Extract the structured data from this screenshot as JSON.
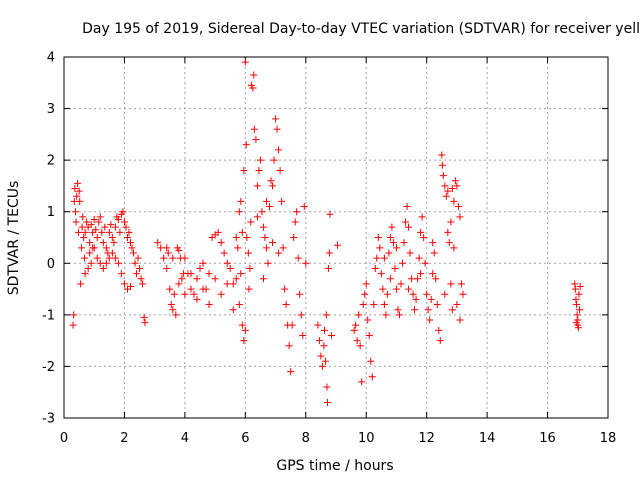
{
  "chart_data": {
    "type": "scatter",
    "title": "Day 195 of 2019, Sidereal Day-to-day VTEC variation (SDTVAR) for receiver yell",
    "xlabel": "GPS time / hours",
    "ylabel": "SDTVAR / TECUs",
    "xlim": [
      0,
      18
    ],
    "ylim": [
      -3,
      4
    ],
    "xticks": [
      0,
      2,
      4,
      6,
      8,
      10,
      12,
      14,
      16,
      18
    ],
    "yticks": [
      -3,
      -2,
      -1,
      0,
      1,
      2,
      3,
      4
    ],
    "grid": true,
    "marker": "+",
    "color": "#ff0000",
    "series": [
      {
        "name": "SDTVAR",
        "points": [
          [
            0.3,
            -1.2
          ],
          [
            0.32,
            -1.0
          ],
          [
            0.34,
            1.2
          ],
          [
            0.36,
            1.45
          ],
          [
            0.38,
            1.0
          ],
          [
            0.4,
            0.8
          ],
          [
            0.42,
            1.3
          ],
          [
            0.45,
            1.55
          ],
          [
            0.48,
            0.6
          ],
          [
            0.5,
            1.4
          ],
          [
            0.52,
            1.2
          ],
          [
            0.55,
            -0.4
          ],
          [
            0.58,
            0.3
          ],
          [
            0.6,
            0.7
          ],
          [
            0.62,
            0.9
          ],
          [
            0.65,
            0.5
          ],
          [
            0.68,
            0.1
          ],
          [
            0.7,
            0.6
          ],
          [
            0.75,
            0.8
          ],
          [
            0.8,
            0.7
          ],
          [
            0.85,
            0.2
          ],
          [
            0.9,
            0.75
          ],
          [
            0.95,
            0.6
          ],
          [
            1.0,
            0.85
          ],
          [
            1.05,
            0.65
          ],
          [
            1.1,
            0.5
          ],
          [
            1.15,
            0.8
          ],
          [
            1.2,
            0.9
          ],
          [
            1.25,
            0.6
          ],
          [
            1.3,
            0.4
          ],
          [
            1.35,
            0.7
          ],
          [
            1.4,
            0.3
          ],
          [
            1.45,
            0.2
          ],
          [
            1.5,
            0.6
          ],
          [
            1.55,
            0.75
          ],
          [
            1.6,
            0.5
          ],
          [
            1.65,
            0.4
          ],
          [
            1.7,
            0.7
          ],
          [
            1.75,
            0.9
          ],
          [
            1.8,
            0.85
          ],
          [
            1.85,
            0.6
          ],
          [
            1.9,
            0.95
          ],
          [
            1.95,
            1.0
          ],
          [
            2.0,
            0.8
          ],
          [
            2.05,
            0.7
          ],
          [
            2.1,
            0.5
          ],
          [
            2.15,
            0.6
          ],
          [
            2.2,
            0.4
          ],
          [
            2.25,
            0.3
          ],
          [
            2.3,
            0.2
          ],
          [
            2.35,
            0.0
          ],
          [
            2.4,
            -0.2
          ],
          [
            2.45,
            0.1
          ],
          [
            2.5,
            -0.1
          ],
          [
            2.55,
            -0.3
          ],
          [
            2.6,
            -0.4
          ],
          [
            2.65,
            -1.05
          ],
          [
            2.68,
            -1.15
          ],
          [
            1.0,
            0.3
          ],
          [
            1.1,
            0.1
          ],
          [
            1.2,
            0.0
          ],
          [
            1.3,
            -0.1
          ],
          [
            1.4,
            0.0
          ],
          [
            1.5,
            0.1
          ],
          [
            1.6,
            0.2
          ],
          [
            1.7,
            0.1
          ],
          [
            1.8,
            0.0
          ],
          [
            1.9,
            -0.2
          ],
          [
            2.0,
            -0.4
          ],
          [
            2.1,
            -0.5
          ],
          [
            2.2,
            -0.45
          ],
          [
            0.7,
            -0.2
          ],
          [
            0.8,
            -0.1
          ],
          [
            0.9,
            0.0
          ],
          [
            0.85,
            0.4
          ],
          [
            0.95,
            0.3
          ],
          [
            3.1,
            0.4
          ],
          [
            3.2,
            0.3
          ],
          [
            3.3,
            0.1
          ],
          [
            3.4,
            -0.1
          ],
          [
            3.45,
            0.2
          ],
          [
            3.5,
            -0.5
          ],
          [
            3.55,
            -0.8
          ],
          [
            3.6,
            -0.9
          ],
          [
            3.65,
            -0.6
          ],
          [
            3.7,
            -1.0
          ],
          [
            3.75,
            0.3
          ],
          [
            3.8,
            0.25
          ],
          [
            3.85,
            0.1
          ],
          [
            3.9,
            -0.3
          ],
          [
            3.95,
            -0.2
          ],
          [
            4.0,
            0.1
          ],
          [
            4.1,
            -0.2
          ],
          [
            4.2,
            -0.5
          ],
          [
            4.3,
            -0.6
          ],
          [
            4.4,
            -0.3
          ],
          [
            4.5,
            -0.1
          ],
          [
            4.6,
            0.0
          ],
          [
            4.7,
            -0.5
          ],
          [
            4.8,
            -0.2
          ],
          [
            4.9,
            0.5
          ],
          [
            5.0,
            0.55
          ],
          [
            5.1,
            0.6
          ],
          [
            5.2,
            0.4
          ],
          [
            5.3,
            0.2
          ],
          [
            5.4,
            0.0
          ],
          [
            5.5,
            -0.1
          ],
          [
            5.6,
            -0.4
          ],
          [
            5.7,
            -0.3
          ],
          [
            5.8,
            -0.8
          ],
          [
            5.9,
            -1.2
          ],
          [
            5.95,
            -1.5
          ],
          [
            6.0,
            -1.3
          ],
          [
            5.85,
            -0.2
          ],
          [
            5.75,
            0.3
          ],
          [
            5.7,
            0.5
          ],
          [
            3.4,
            0.3
          ],
          [
            3.6,
            0.1
          ],
          [
            3.8,
            -0.4
          ],
          [
            4.0,
            -0.6
          ],
          [
            4.2,
            -0.2
          ],
          [
            4.4,
            -0.7
          ],
          [
            4.6,
            -0.5
          ],
          [
            4.8,
            -0.8
          ],
          [
            5.0,
            -0.3
          ],
          [
            5.2,
            -0.6
          ],
          [
            5.4,
            -0.4
          ],
          [
            5.6,
            -0.9
          ],
          [
            5.8,
            1.0
          ],
          [
            5.85,
            1.2
          ],
          [
            5.9,
            0.6
          ],
          [
            5.95,
            1.8
          ],
          [
            6.0,
            3.9
          ],
          [
            6.03,
            2.3
          ],
          [
            6.05,
            0.5
          ],
          [
            6.1,
            0.2
          ],
          [
            6.15,
            -0.1
          ],
          [
            6.2,
            3.45
          ],
          [
            6.25,
            3.4
          ],
          [
            6.28,
            3.65
          ],
          [
            6.3,
            2.6
          ],
          [
            6.35,
            2.4
          ],
          [
            6.4,
            1.5
          ],
          [
            6.45,
            1.8
          ],
          [
            6.5,
            2.0
          ],
          [
            6.55,
            1.0
          ],
          [
            6.6,
            0.7
          ],
          [
            6.65,
            0.5
          ],
          [
            6.7,
            0.3
          ],
          [
            6.75,
            0.0
          ],
          [
            6.8,
            1.1
          ],
          [
            6.85,
            1.6
          ],
          [
            6.9,
            1.5
          ],
          [
            6.95,
            2.0
          ],
          [
            7.0,
            2.8
          ],
          [
            7.05,
            2.6
          ],
          [
            7.1,
            2.2
          ],
          [
            7.15,
            1.8
          ],
          [
            7.2,
            1.2
          ],
          [
            7.25,
            0.3
          ],
          [
            7.3,
            -0.5
          ],
          [
            7.35,
            -0.8
          ],
          [
            7.4,
            -1.2
          ],
          [
            7.45,
            -1.6
          ],
          [
            7.5,
            -2.1
          ],
          [
            7.55,
            -1.2
          ],
          [
            7.6,
            0.5
          ],
          [
            7.65,
            0.8
          ],
          [
            7.7,
            1.0
          ],
          [
            7.75,
            0.1
          ],
          [
            7.8,
            -0.6
          ],
          [
            7.85,
            -1.0
          ],
          [
            7.9,
            -1.4
          ],
          [
            7.95,
            1.1
          ],
          [
            8.0,
            0.0
          ],
          [
            6.12,
            -0.5
          ],
          [
            6.18,
            0.8
          ],
          [
            6.4,
            0.9
          ],
          [
            6.6,
            -0.3
          ],
          [
            6.7,
            1.2
          ],
          [
            6.9,
            0.4
          ],
          [
            7.1,
            0.2
          ],
          [
            8.4,
            -1.2
          ],
          [
            8.45,
            -1.5
          ],
          [
            8.5,
            -1.8
          ],
          [
            8.55,
            -2.0
          ],
          [
            8.6,
            -1.6
          ],
          [
            8.65,
            -1.9
          ],
          [
            8.7,
            -2.4
          ],
          [
            8.72,
            -2.7
          ],
          [
            8.75,
            -0.1
          ],
          [
            8.78,
            0.2
          ],
          [
            8.8,
            0.95
          ],
          [
            8.85,
            -1.4
          ],
          [
            9.05,
            0.35
          ],
          [
            8.68,
            -1.0
          ],
          [
            8.62,
            -1.3
          ],
          [
            9.6,
            -1.3
          ],
          [
            9.65,
            -1.2
          ],
          [
            9.7,
            -1.5
          ],
          [
            9.75,
            -1.0
          ],
          [
            9.8,
            -1.6
          ],
          [
            9.85,
            -2.3
          ],
          [
            9.9,
            -0.8
          ],
          [
            9.95,
            -0.6
          ],
          [
            10.0,
            -0.4
          ],
          [
            10.05,
            -1.1
          ],
          [
            10.1,
            -1.4
          ],
          [
            10.15,
            -1.9
          ],
          [
            10.2,
            -2.2
          ],
          [
            10.25,
            -0.8
          ],
          [
            10.3,
            -0.1
          ],
          [
            10.35,
            0.1
          ],
          [
            10.4,
            0.5
          ],
          [
            10.45,
            0.3
          ],
          [
            10.5,
            -0.2
          ],
          [
            10.55,
            -0.5
          ],
          [
            10.6,
            -0.8
          ],
          [
            10.65,
            -1.0
          ],
          [
            10.7,
            -0.6
          ],
          [
            10.75,
            0.2
          ],
          [
            10.8,
            0.5
          ],
          [
            10.85,
            0.7
          ],
          [
            10.9,
            0.4
          ],
          [
            10.95,
            -0.1
          ],
          [
            11.0,
            -0.5
          ],
          [
            11.05,
            -0.9
          ],
          [
            11.1,
            -1.0
          ],
          [
            11.15,
            -0.4
          ],
          [
            11.2,
            0.0
          ],
          [
            11.25,
            0.4
          ],
          [
            11.3,
            0.8
          ],
          [
            11.35,
            1.1
          ],
          [
            11.4,
            0.7
          ],
          [
            11.45,
            0.2
          ],
          [
            11.5,
            -0.3
          ],
          [
            11.55,
            -0.6
          ],
          [
            11.6,
            -0.9
          ],
          [
            11.65,
            -0.7
          ],
          [
            11.7,
            -0.3
          ],
          [
            11.75,
            0.1
          ],
          [
            11.8,
            0.6
          ],
          [
            11.85,
            0.9
          ],
          [
            11.9,
            0.5
          ],
          [
            11.95,
            0.0
          ],
          [
            12.0,
            -0.6
          ],
          [
            12.05,
            -0.9
          ],
          [
            12.1,
            -1.1
          ],
          [
            12.15,
            -0.7
          ],
          [
            12.2,
            -0.2
          ],
          [
            12.25,
            0.2
          ],
          [
            12.3,
            -0.3
          ],
          [
            12.35,
            -0.8
          ],
          [
            12.4,
            -1.3
          ],
          [
            12.45,
            -1.5
          ],
          [
            12.5,
            2.1
          ],
          [
            12.52,
            1.9
          ],
          [
            12.55,
            1.7
          ],
          [
            12.6,
            1.5
          ],
          [
            12.65,
            1.3
          ],
          [
            12.7,
            0.6
          ],
          [
            12.75,
            0.4
          ],
          [
            12.8,
            -0.4
          ],
          [
            12.85,
            -0.9
          ],
          [
            12.9,
            1.2
          ],
          [
            12.95,
            1.6
          ],
          [
            13.0,
            1.5
          ],
          [
            13.05,
            1.1
          ],
          [
            13.1,
            0.9
          ],
          [
            13.15,
            -0.4
          ],
          [
            13.2,
            -0.6
          ],
          [
            13.1,
            -1.1
          ],
          [
            13.0,
            -0.8
          ],
          [
            12.9,
            0.3
          ],
          [
            12.8,
            0.8
          ],
          [
            11.0,
            0.3
          ],
          [
            10.8,
            -0.3
          ],
          [
            10.6,
            0.1
          ],
          [
            11.4,
            -0.5
          ],
          [
            11.8,
            -0.2
          ],
          [
            12.2,
            0.4
          ],
          [
            12.6,
            -0.6
          ],
          [
            12.7,
            1.4
          ],
          [
            12.85,
            1.45
          ],
          [
            16.9,
            -0.4
          ],
          [
            16.92,
            -0.5
          ],
          [
            16.94,
            -0.7
          ],
          [
            16.96,
            -0.8
          ],
          [
            16.98,
            -1.0
          ],
          [
            17.0,
            -1.1
          ],
          [
            17.02,
            -1.25
          ],
          [
            17.04,
            -0.6
          ],
          [
            17.06,
            -0.9
          ],
          [
            17.08,
            -0.45
          ],
          [
            17.0,
            -1.2
          ],
          [
            16.95,
            -1.15
          ]
        ]
      }
    ]
  }
}
